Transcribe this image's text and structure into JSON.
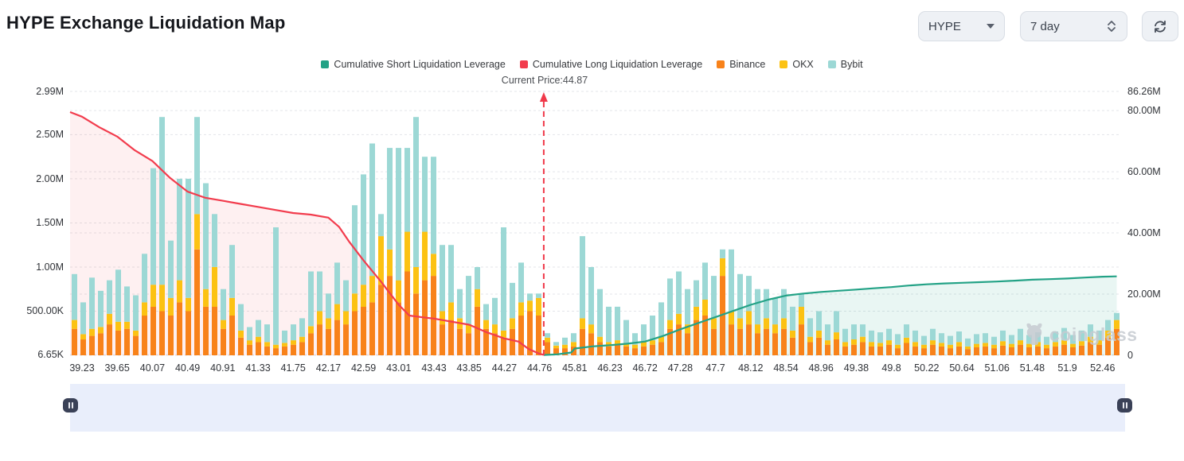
{
  "header": {
    "title": "HYPE Exchange Liquidation Map"
  },
  "controls": {
    "symbol": {
      "value": "HYPE"
    },
    "timeframe": {
      "value": "7 day"
    }
  },
  "legend": {
    "items": [
      {
        "label": "Cumulative Short Liquidation Leverage",
        "color": "#23a286"
      },
      {
        "label": "Cumulative Long Liquidation Leverage",
        "color": "#f23c4d"
      },
      {
        "label": "Binance",
        "color": "#f8821a"
      },
      {
        "label": "OKX",
        "color": "#fcc213"
      },
      {
        "label": "Bybit",
        "color": "#9cd8d5"
      }
    ]
  },
  "annotation": {
    "current_price_label": "Current Price:44.87"
  },
  "watermark": {
    "text": "coinglass"
  },
  "chart_data": {
    "type": "combo: stacked-bar + area-line",
    "title": "HYPE Exchange Liquidation Map",
    "grid": "dashed-horizontal",
    "legend_position": "top-center",
    "current_price": 44.87,
    "x_labels": [
      "39.23",
      "39.65",
      "40.07",
      "40.49",
      "40.91",
      "41.33",
      "41.75",
      "42.17",
      "42.59",
      "43.01",
      "43.43",
      "43.85",
      "44.27",
      "44.76",
      "45.81",
      "46.23",
      "46.72",
      "47.28",
      "47.7",
      "48.12",
      "48.54",
      "48.96",
      "49.38",
      "49.8",
      "50.22",
      "50.64",
      "51.06",
      "51.48",
      "51.9",
      "52.46"
    ],
    "bars_per_x_label": 4,
    "left_axis": {
      "unit": "liquidation value",
      "max": 2.99,
      "ticks": [
        {
          "label": "2.99M",
          "value": 2.99
        },
        {
          "label": "2.50M",
          "value": 2.5
        },
        {
          "label": "2.00M",
          "value": 2.0
        },
        {
          "label": "1.50M",
          "value": 1.5
        },
        {
          "label": "1.00M",
          "value": 1.0
        },
        {
          "label": "500.00K",
          "value": 0.5
        },
        {
          "label": "6.65K",
          "value": 0.00665
        }
      ]
    },
    "right_axis": {
      "unit": "cumulative leverage",
      "max": 86.26,
      "ticks": [
        {
          "label": "86.26M",
          "value": 86.26
        },
        {
          "label": "80.00M",
          "value": 80
        },
        {
          "label": "60.00M",
          "value": 60
        },
        {
          "label": "40.00M",
          "value": 40
        },
        {
          "label": "20.00M",
          "value": 20
        },
        {
          "label": "0",
          "value": 0
        }
      ]
    },
    "series": [
      {
        "name": "Binance",
        "type": "bar",
        "stack": "liq",
        "axis": "left",
        "color": "#f8821a",
        "values": [
          0.3,
          0.18,
          0.22,
          0.25,
          0.35,
          0.28,
          0.3,
          0.22,
          0.45,
          0.55,
          0.5,
          0.45,
          0.6,
          0.5,
          1.2,
          0.55,
          0.55,
          0.3,
          0.45,
          0.2,
          0.12,
          0.15,
          0.1,
          0.08,
          0.1,
          0.12,
          0.15,
          0.25,
          0.35,
          0.3,
          0.4,
          0.35,
          0.5,
          0.55,
          0.6,
          0.8,
          0.9,
          0.6,
          0.95,
          0.7,
          0.85,
          0.9,
          0.35,
          0.4,
          0.3,
          0.25,
          0.55,
          0.3,
          0.25,
          0.2,
          0.3,
          0.45,
          0.5,
          0.45,
          0.15,
          0.08,
          0.08,
          0.1,
          0.3,
          0.25,
          0.15,
          0.1,
          0.12,
          0.1,
          0.08,
          0.1,
          0.12,
          0.15,
          0.3,
          0.35,
          0.25,
          0.4,
          0.45,
          0.3,
          0.9,
          0.35,
          0.3,
          0.35,
          0.25,
          0.3,
          0.25,
          0.3,
          0.2,
          0.35,
          0.15,
          0.2,
          0.12,
          0.18,
          0.1,
          0.12,
          0.15,
          0.1,
          0.1,
          0.12,
          0.08,
          0.14,
          0.1,
          0.08,
          0.12,
          0.1,
          0.08,
          0.1,
          0.07,
          0.09,
          0.1,
          0.08,
          0.11,
          0.09,
          0.12,
          0.09,
          0.1,
          0.08,
          0.1,
          0.12,
          0.09,
          0.11,
          0.15,
          0.12,
          0.2,
          0.3
        ]
      },
      {
        "name": "OKX",
        "type": "bar",
        "stack": "liq",
        "axis": "left",
        "color": "#fcc213",
        "values": [
          0.1,
          0.06,
          0.08,
          0.07,
          0.12,
          0.1,
          0.08,
          0.06,
          0.15,
          0.25,
          0.3,
          0.2,
          0.25,
          0.15,
          0.4,
          0.2,
          0.45,
          0.1,
          0.2,
          0.08,
          0.05,
          0.06,
          0.05,
          0.04,
          0.04,
          0.05,
          0.06,
          0.08,
          0.15,
          0.12,
          0.18,
          0.15,
          0.2,
          0.25,
          0.3,
          0.55,
          0.3,
          0.25,
          0.45,
          0.3,
          0.55,
          0.25,
          0.15,
          0.2,
          0.12,
          0.1,
          0.2,
          0.1,
          0.1,
          0.08,
          0.12,
          0.15,
          0.12,
          0.2,
          0.05,
          0.03,
          0.04,
          0.05,
          0.12,
          0.1,
          0.06,
          0.05,
          0.05,
          0.04,
          0.04,
          0.05,
          0.05,
          0.06,
          0.1,
          0.12,
          0.1,
          0.15,
          0.18,
          0.12,
          0.2,
          0.15,
          0.12,
          0.15,
          0.1,
          0.12,
          0.1,
          0.12,
          0.08,
          0.2,
          0.06,
          0.08,
          0.05,
          0.08,
          0.05,
          0.06,
          0.06,
          0.05,
          0.04,
          0.05,
          0.04,
          0.06,
          0.05,
          0.04,
          0.05,
          0.04,
          0.04,
          0.05,
          0.03,
          0.04,
          0.04,
          0.04,
          0.05,
          0.04,
          0.05,
          0.04,
          0.05,
          0.04,
          0.05,
          0.05,
          0.04,
          0.05,
          0.06,
          0.05,
          0.08,
          0.1
        ]
      },
      {
        "name": "Bybit",
        "type": "bar",
        "stack": "liq",
        "axis": "left",
        "color": "#9cd8d5",
        "values": [
          0.52,
          0.36,
          0.58,
          0.41,
          0.38,
          0.59,
          0.4,
          0.4,
          0.55,
          1.32,
          1.9,
          0.65,
          1.15,
          1.35,
          1.1,
          1.2,
          0.6,
          0.35,
          0.6,
          0.3,
          0.15,
          0.19,
          0.2,
          1.33,
          0.14,
          0.18,
          0.21,
          0.62,
          0.45,
          0.28,
          0.47,
          0.35,
          1.0,
          1.25,
          1.5,
          0.25,
          1.15,
          1.5,
          0.95,
          1.7,
          0.85,
          1.1,
          0.75,
          0.65,
          0.33,
          0.55,
          0.25,
          0.18,
          0.3,
          1.17,
          0.4,
          0.45,
          0.08,
          0.05,
          0.05,
          0.04,
          0.08,
          0.1,
          0.93,
          0.65,
          0.54,
          0.4,
          0.38,
          0.26,
          0.13,
          0.2,
          0.28,
          0.39,
          0.47,
          0.48,
          0.4,
          0.3,
          0.42,
          0.48,
          0.1,
          0.7,
          0.5,
          0.4,
          0.4,
          0.33,
          0.3,
          0.33,
          0.27,
          0.15,
          0.21,
          0.22,
          0.18,
          0.24,
          0.15,
          0.17,
          0.14,
          0.13,
          0.12,
          0.13,
          0.12,
          0.15,
          0.13,
          0.1,
          0.13,
          0.11,
          0.1,
          0.12,
          0.09,
          0.11,
          0.11,
          0.09,
          0.12,
          0.1,
          0.13,
          0.1,
          0.11,
          0.09,
          0.12,
          0.14,
          0.1,
          0.12,
          0.14,
          0.11,
          0.12,
          0.08
        ]
      },
      {
        "name": "Cumulative Long Liquidation Leverage",
        "type": "line",
        "axis": "right",
        "color": "#f23c4d",
        "fill": "rgba(242,60,77,0.08)",
        "points": [
          [
            -0.34,
            79.5
          ],
          [
            0,
            78
          ],
          [
            0.5,
            74.5
          ],
          [
            1,
            71.5
          ],
          [
            1.5,
            67
          ],
          [
            2,
            63.5
          ],
          [
            2.5,
            58
          ],
          [
            3,
            53.5
          ],
          [
            3.5,
            51.5
          ],
          [
            4,
            50.5
          ],
          [
            4.5,
            49.5
          ],
          [
            5,
            48.5
          ],
          [
            5.5,
            47.5
          ],
          [
            6,
            46.5
          ],
          [
            6.5,
            46
          ],
          [
            7,
            45
          ],
          [
            7.3,
            42
          ],
          [
            7.6,
            37
          ],
          [
            8,
            31
          ],
          [
            8.5,
            24
          ],
          [
            9,
            16.5
          ],
          [
            9.3,
            13
          ],
          [
            9.7,
            12.4
          ],
          [
            10,
            12
          ],
          [
            10.5,
            11
          ],
          [
            11,
            10
          ],
          [
            11.5,
            7.5
          ],
          [
            12,
            5.5
          ],
          [
            12.4,
            4.5
          ],
          [
            12.7,
            2
          ],
          [
            13,
            0.5
          ],
          [
            13.12,
            0.15
          ]
        ]
      },
      {
        "name": "Cumulative Short Liquidation Leverage",
        "type": "line",
        "axis": "right",
        "color": "#23a286",
        "fill": "rgba(35,162,134,0.10)",
        "points": [
          [
            13.12,
            0.1
          ],
          [
            13.5,
            0.3
          ],
          [
            13.9,
            0.9
          ],
          [
            14,
            2.2
          ],
          [
            14.5,
            2.9
          ],
          [
            15,
            3.3
          ],
          [
            15.5,
            3.8
          ],
          [
            16,
            4.5
          ],
          [
            16.5,
            6.3
          ],
          [
            17,
            8.5
          ],
          [
            17.5,
            10.5
          ],
          [
            18,
            12.5
          ],
          [
            18.5,
            14.5
          ],
          [
            19,
            16.5
          ],
          [
            19.5,
            18.2
          ],
          [
            20,
            19.5
          ],
          [
            20.5,
            20.2
          ],
          [
            21,
            20.7
          ],
          [
            21.5,
            21.1
          ],
          [
            22,
            21.5
          ],
          [
            22.5,
            21.9
          ],
          [
            23,
            22.3
          ],
          [
            23.5,
            22.8
          ],
          [
            24,
            23.2
          ],
          [
            24.5,
            23.5
          ],
          [
            25,
            23.7
          ],
          [
            25.5,
            23.9
          ],
          [
            26,
            24.1
          ],
          [
            26.5,
            24.4
          ],
          [
            27,
            24.7
          ],
          [
            27.5,
            24.9
          ],
          [
            28,
            25.1
          ],
          [
            28.5,
            25.4
          ],
          [
            29,
            25.7
          ],
          [
            29.4,
            25.8
          ]
        ]
      }
    ]
  }
}
